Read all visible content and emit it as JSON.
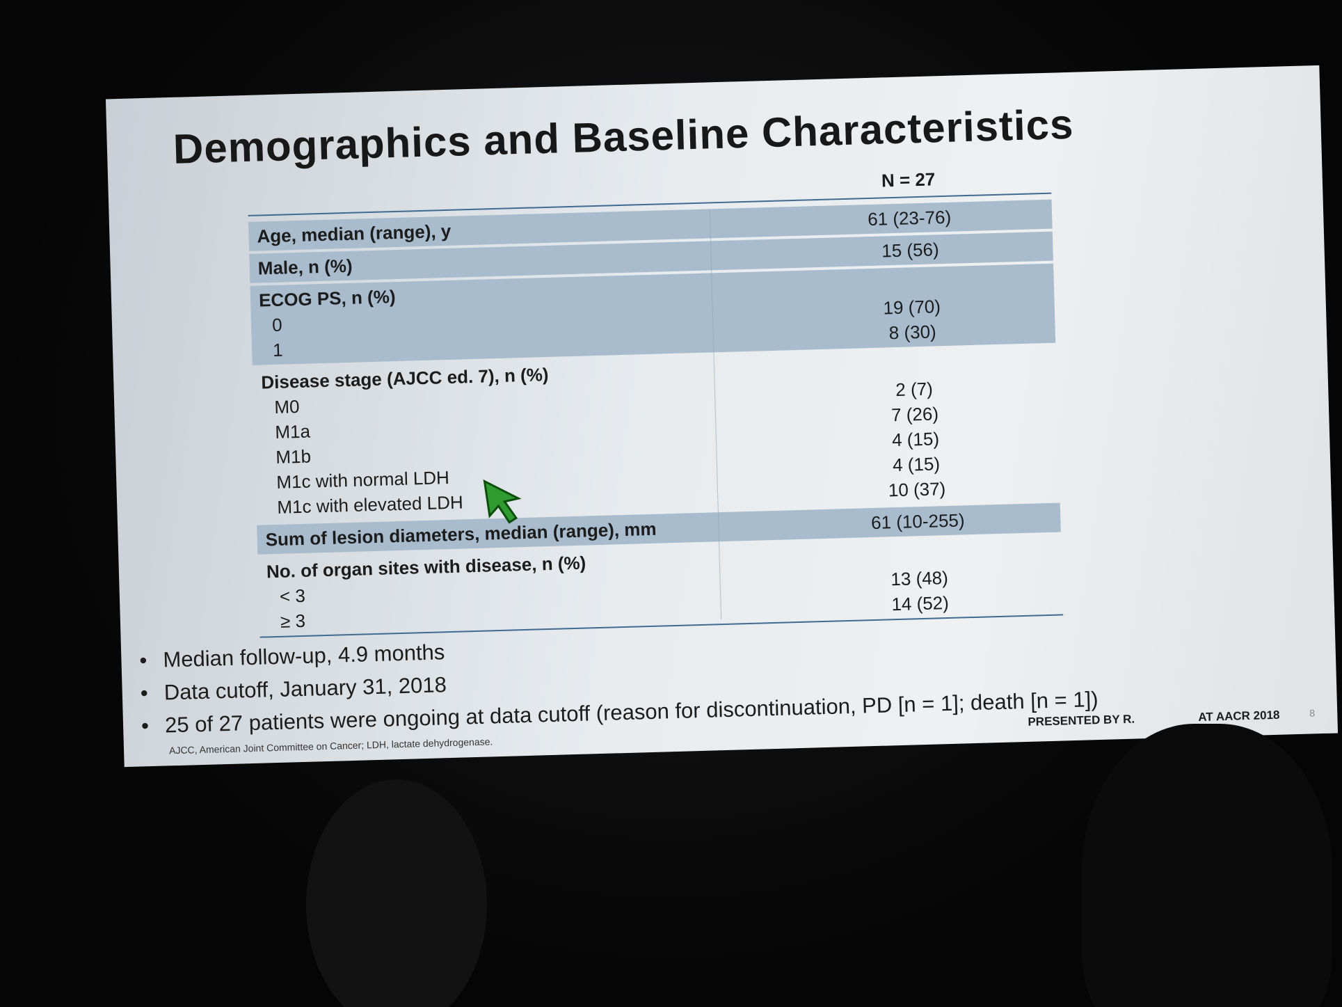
{
  "slide": {
    "title": "Demographics and Baseline Characteristics",
    "table": {
      "header": "N = 27",
      "sections": [
        {
          "label": "Age, median (range), y",
          "value": "61 (23-76)",
          "shaded": true
        },
        {
          "label": "Male, n (%)",
          "value": "15 (56)",
          "shaded": true
        },
        {
          "label": "ECOG PS, n (%)",
          "shaded": true,
          "items": [
            {
              "label": "0",
              "value": "19 (70)"
            },
            {
              "label": "1",
              "value": "8 (30)"
            }
          ]
        },
        {
          "label": "Disease stage (AJCC ed. 7), n (%)",
          "shaded": false,
          "items": [
            {
              "label": "M0",
              "value": "2 (7)"
            },
            {
              "label": "M1a",
              "value": "7 (26)"
            },
            {
              "label": "M1b",
              "value": "4 (15)"
            },
            {
              "label": "M1c with normal LDH",
              "value": "4 (15)"
            },
            {
              "label": "M1c with elevated LDH",
              "value": "10 (37)"
            }
          ]
        },
        {
          "label": "Sum of lesion diameters, median (range), mm",
          "value": "61 (10-255)",
          "shaded": true
        },
        {
          "label": "No. of organ sites with disease, n (%)",
          "shaded": false,
          "items": [
            {
              "label": "< 3",
              "value": "13 (48)"
            },
            {
              "label": "≥ 3",
              "value": "14 (52)"
            }
          ]
        }
      ]
    },
    "bullets": [
      "Median follow-up, 4.9 months",
      "Data cutoff, January 31, 2018",
      "25 of 27 patients were ongoing at data cutoff (reason for discontinuation, PD [n = 1]; death [n = 1])"
    ],
    "footnote": "AJCC, American Joint Committee on Cancer; LDH, lactate dehydrogenase.",
    "presenter_start": "PRESENTED BY R.",
    "presenter_end": "AT AACR 2018",
    "page_number": "8"
  }
}
